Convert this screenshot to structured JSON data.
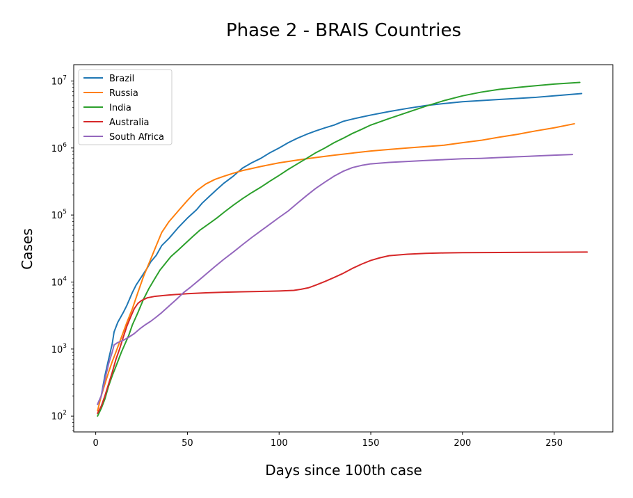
{
  "chart_data": {
    "type": "line",
    "title": "Phase 2 - BRAIS Countries",
    "xlabel": "Days since 100th case",
    "ylabel": "Cases",
    "yscale": "log",
    "xlim": [
      -12,
      282
    ],
    "ylim": [
      58,
      17500000
    ],
    "grid": false,
    "legend_position": "top-left",
    "xticks": [
      0,
      50,
      100,
      150,
      200,
      250
    ],
    "xtick_labels": [
      "0",
      "50",
      "100",
      "150",
      "200",
      "250"
    ],
    "yticks": [
      100,
      1000,
      10000,
      100000,
      1000000,
      10000000
    ],
    "ytick_labels": [
      {
        "base": "10",
        "exp": "2"
      },
      {
        "base": "10",
        "exp": "3"
      },
      {
        "base": "10",
        "exp": "4"
      },
      {
        "base": "10",
        "exp": "5"
      },
      {
        "base": "10",
        "exp": "6"
      },
      {
        "base": "10",
        "exp": "7"
      }
    ],
    "series": [
      {
        "name": "Brazil",
        "color": "#1f77b4",
        "points": [
          [
            1,
            150
          ],
          [
            3,
            200
          ],
          [
            5,
            400
          ],
          [
            7,
            700
          ],
          [
            9,
            1200
          ],
          [
            10,
            1800
          ],
          [
            12,
            2500
          ],
          [
            15,
            3500
          ],
          [
            17,
            4500
          ],
          [
            20,
            7000
          ],
          [
            22,
            9000
          ],
          [
            25,
            12000
          ],
          [
            28,
            16000
          ],
          [
            30,
            20000
          ],
          [
            33,
            25000
          ],
          [
            36,
            35000
          ],
          [
            40,
            45000
          ],
          [
            45,
            65000
          ],
          [
            50,
            90000
          ],
          [
            55,
            120000
          ],
          [
            58,
            150000
          ],
          [
            62,
            190000
          ],
          [
            66,
            240000
          ],
          [
            70,
            300000
          ],
          [
            75,
            380000
          ],
          [
            80,
            500000
          ],
          [
            85,
            600000
          ],
          [
            90,
            700000
          ],
          [
            95,
            850000
          ],
          [
            100,
            1000000
          ],
          [
            105,
            1200000
          ],
          [
            110,
            1400000
          ],
          [
            115,
            1600000
          ],
          [
            120,
            1800000
          ],
          [
            125,
            2000000
          ],
          [
            130,
            2200000
          ],
          [
            135,
            2500000
          ],
          [
            140,
            2700000
          ],
          [
            145,
            2900000
          ],
          [
            150,
            3100000
          ],
          [
            160,
            3500000
          ],
          [
            170,
            3900000
          ],
          [
            180,
            4300000
          ],
          [
            190,
            4600000
          ],
          [
            200,
            4900000
          ],
          [
            210,
            5100000
          ],
          [
            220,
            5300000
          ],
          [
            230,
            5500000
          ],
          [
            240,
            5700000
          ],
          [
            250,
            6000000
          ],
          [
            265,
            6500000
          ]
        ]
      },
      {
        "name": "Russia",
        "color": "#ff7f0e",
        "points": [
          [
            1,
            120
          ],
          [
            3,
            200
          ],
          [
            5,
            300
          ],
          [
            7,
            450
          ],
          [
            9,
            650
          ],
          [
            11,
            900
          ],
          [
            14,
            1500
          ],
          [
            17,
            2500
          ],
          [
            20,
            4000
          ],
          [
            23,
            7000
          ],
          [
            26,
            12000
          ],
          [
            30,
            22000
          ],
          [
            33,
            35000
          ],
          [
            36,
            55000
          ],
          [
            40,
            80000
          ],
          [
            45,
            115000
          ],
          [
            50,
            165000
          ],
          [
            55,
            230000
          ],
          [
            60,
            290000
          ],
          [
            65,
            340000
          ],
          [
            70,
            380000
          ],
          [
            75,
            420000
          ],
          [
            80,
            460000
          ],
          [
            90,
            530000
          ],
          [
            100,
            600000
          ],
          [
            110,
            660000
          ],
          [
            120,
            720000
          ],
          [
            130,
            780000
          ],
          [
            140,
            840000
          ],
          [
            150,
            900000
          ],
          [
            160,
            950000
          ],
          [
            170,
            1000000
          ],
          [
            180,
            1050000
          ],
          [
            190,
            1100000
          ],
          [
            200,
            1200000
          ],
          [
            210,
            1300000
          ],
          [
            220,
            1450000
          ],
          [
            230,
            1600000
          ],
          [
            240,
            1800000
          ],
          [
            250,
            2000000
          ],
          [
            261,
            2300000
          ]
        ]
      },
      {
        "name": "India",
        "color": "#2ca02c",
        "points": [
          [
            1,
            100
          ],
          [
            3,
            130
          ],
          [
            5,
            180
          ],
          [
            7,
            280
          ],
          [
            9,
            400
          ],
          [
            11,
            550
          ],
          [
            14,
            900
          ],
          [
            16,
            1200
          ],
          [
            18,
            1600
          ],
          [
            20,
            2300
          ],
          [
            23,
            3500
          ],
          [
            26,
            5500
          ],
          [
            29,
            8000
          ],
          [
            32,
            11000
          ],
          [
            35,
            15000
          ],
          [
            38,
            19000
          ],
          [
            41,
            24000
          ],
          [
            45,
            30000
          ],
          [
            49,
            38000
          ],
          [
            53,
            48000
          ],
          [
            57,
            60000
          ],
          [
            62,
            75000
          ],
          [
            66,
            90000
          ],
          [
            70,
            110000
          ],
          [
            75,
            140000
          ],
          [
            80,
            175000
          ],
          [
            85,
            215000
          ],
          [
            90,
            260000
          ],
          [
            95,
            320000
          ],
          [
            100,
            390000
          ],
          [
            105,
            480000
          ],
          [
            110,
            580000
          ],
          [
            115,
            700000
          ],
          [
            120,
            850000
          ],
          [
            125,
            1000000
          ],
          [
            130,
            1200000
          ],
          [
            135,
            1400000
          ],
          [
            140,
            1650000
          ],
          [
            145,
            1900000
          ],
          [
            150,
            2200000
          ],
          [
            160,
            2750000
          ],
          [
            170,
            3400000
          ],
          [
            180,
            4200000
          ],
          [
            190,
            5100000
          ],
          [
            200,
            6000000
          ],
          [
            210,
            6800000
          ],
          [
            220,
            7500000
          ],
          [
            230,
            8000000
          ],
          [
            240,
            8500000
          ],
          [
            250,
            9000000
          ],
          [
            264,
            9500000
          ]
        ]
      },
      {
        "name": "Australia",
        "color": "#d62728",
        "points": [
          [
            1,
            110
          ],
          [
            3,
            140
          ],
          [
            5,
            200
          ],
          [
            7,
            300
          ],
          [
            9,
            450
          ],
          [
            11,
            700
          ],
          [
            13,
            1000
          ],
          [
            15,
            1500
          ],
          [
            17,
            2200
          ],
          [
            19,
            3000
          ],
          [
            21,
            4000
          ],
          [
            23,
            4800
          ],
          [
            25,
            5300
          ],
          [
            28,
            5800
          ],
          [
            32,
            6100
          ],
          [
            40,
            6400
          ],
          [
            50,
            6700
          ],
          [
            60,
            6900
          ],
          [
            70,
            7050
          ],
          [
            80,
            7150
          ],
          [
            90,
            7250
          ],
          [
            100,
            7350
          ],
          [
            108,
            7500
          ],
          [
            112,
            7800
          ],
          [
            116,
            8200
          ],
          [
            120,
            9000
          ],
          [
            125,
            10200
          ],
          [
            130,
            11700
          ],
          [
            135,
            13500
          ],
          [
            140,
            16000
          ],
          [
            145,
            18500
          ],
          [
            150,
            21000
          ],
          [
            155,
            23000
          ],
          [
            160,
            24700
          ],
          [
            170,
            26000
          ],
          [
            180,
            26800
          ],
          [
            190,
            27200
          ],
          [
            200,
            27400
          ],
          [
            220,
            27600
          ],
          [
            240,
            27800
          ],
          [
            268,
            28000
          ]
        ]
      },
      {
        "name": "South Africa",
        "color": "#9467bd",
        "points": [
          [
            1,
            150
          ],
          [
            3,
            200
          ],
          [
            5,
            350
          ],
          [
            7,
            600
          ],
          [
            9,
            900
          ],
          [
            10,
            1150
          ],
          [
            12,
            1250
          ],
          [
            15,
            1350
          ],
          [
            18,
            1500
          ],
          [
            21,
            1700
          ],
          [
            24,
            2000
          ],
          [
            27,
            2300
          ],
          [
            30,
            2600
          ],
          [
            33,
            3000
          ],
          [
            36,
            3500
          ],
          [
            40,
            4400
          ],
          [
            44,
            5500
          ],
          [
            48,
            7000
          ],
          [
            52,
            8500
          ],
          [
            56,
            10500
          ],
          [
            60,
            13000
          ],
          [
            65,
            17000
          ],
          [
            70,
            22000
          ],
          [
            75,
            28000
          ],
          [
            80,
            36000
          ],
          [
            85,
            46000
          ],
          [
            90,
            58000
          ],
          [
            95,
            73000
          ],
          [
            100,
            92000
          ],
          [
            105,
            115000
          ],
          [
            110,
            150000
          ],
          [
            115,
            195000
          ],
          [
            120,
            250000
          ],
          [
            125,
            310000
          ],
          [
            130,
            380000
          ],
          [
            135,
            450000
          ],
          [
            140,
            510000
          ],
          [
            145,
            550000
          ],
          [
            150,
            580000
          ],
          [
            160,
            610000
          ],
          [
            170,
            630000
          ],
          [
            180,
            650000
          ],
          [
            190,
            670000
          ],
          [
            200,
            690000
          ],
          [
            210,
            700000
          ],
          [
            220,
            720000
          ],
          [
            230,
            740000
          ],
          [
            240,
            760000
          ],
          [
            250,
            780000
          ],
          [
            260,
            800000
          ]
        ]
      }
    ]
  }
}
